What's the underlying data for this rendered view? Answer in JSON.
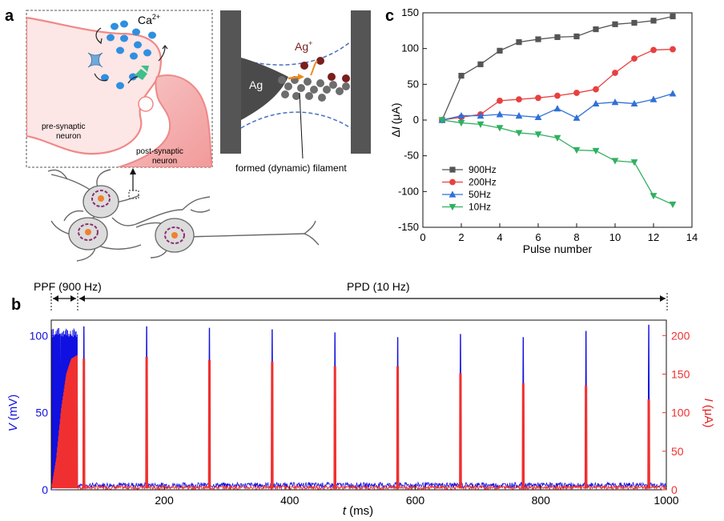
{
  "figure": {
    "panel_a_label": "a",
    "panel_b_label": "b",
    "panel_c_label": "c",
    "synapse": {
      "ion": "Ca",
      "ion_charge": "2+",
      "pre_label_1": "pre-synaptic",
      "pre_label_2": "neuron",
      "post_label_1": "post-synaptic",
      "post_label_2": "neuron"
    },
    "filament": {
      "electrode": "Ag",
      "ion": "Ag",
      "ion_charge": "+",
      "caption": "formed (dynamic) filament"
    },
    "pulse_bar": {
      "ppf_label": "PPF (900 Hz)",
      "ppd_label": "PPD (10 Hz)"
    },
    "colors": {
      "voltage": "#1010e0",
      "current": "#f03030",
      "s900": "#555555",
      "s200": "#e84040",
      "s50": "#3070d8",
      "s10": "#30b060"
    }
  },
  "chart_data": [
    {
      "type": "line",
      "panel": "c",
      "xlabel": "Pulse number",
      "ylabel_symbol": "Δ",
      "ylabel_var": "I",
      "ylabel_unit": "(μA)",
      "xlim": [
        0,
        14
      ],
      "ylim": [
        -150,
        150
      ],
      "xticks": [
        0,
        2,
        4,
        6,
        8,
        10,
        12,
        14
      ],
      "yticks": [
        -150,
        -100,
        -50,
        0,
        50,
        100,
        150
      ],
      "legend_position": "lower-left",
      "x": [
        1,
        2,
        3,
        4,
        5,
        6,
        7,
        8,
        9,
        10,
        11,
        12,
        13
      ],
      "series": [
        {
          "name": "900Hz",
          "marker": "square",
          "color": "#555555",
          "values": [
            0,
            62,
            78,
            97,
            109,
            113,
            116,
            117,
            127,
            134,
            136,
            139,
            145
          ]
        },
        {
          "name": "200Hz",
          "marker": "circle",
          "color": "#e84040",
          "values": [
            0,
            4,
            8,
            27,
            29,
            31,
            34,
            38,
            43,
            66,
            86,
            98,
            99
          ]
        },
        {
          "name": "50Hz",
          "marker": "triangle-up",
          "color": "#3070d8",
          "values": [
            0,
            6,
            6,
            8,
            6,
            4,
            16,
            3,
            23,
            25,
            23,
            29,
            37
          ]
        },
        {
          "name": "10Hz",
          "marker": "triangle-down",
          "color": "#30b060",
          "values": [
            0,
            -4,
            -6,
            -11,
            -18,
            -20,
            -25,
            -42,
            -43,
            -57,
            -59,
            -106,
            -118
          ]
        }
      ]
    },
    {
      "type": "line",
      "panel": "b",
      "xlabel_var": "t",
      "xlabel_unit": "(ms)",
      "ylabel_left_var": "V",
      "ylabel_left_unit": "(mV)",
      "ylabel_right_var": "I",
      "ylabel_right_unit": "(μA)",
      "xlim": [
        20,
        1000
      ],
      "ylim_left": [
        0,
        110
      ],
      "ylim_right": [
        0,
        220
      ],
      "xticks": [
        200,
        400,
        600,
        800,
        1000
      ],
      "yticks_left": [
        0,
        50,
        100
      ],
      "yticks_right": [
        0,
        50,
        100,
        150,
        200
      ],
      "ppf_window_ms": [
        20,
        62
      ],
      "voltage_spike_times_ms": [
        72,
        172,
        272,
        372,
        472,
        572,
        672,
        772,
        872,
        972
      ],
      "voltage_spike_peaks_mV": [
        106,
        106,
        105,
        104,
        102,
        99,
        101,
        99,
        103,
        107
      ],
      "current_spike_peaks_uA": [
        170,
        172,
        168,
        166,
        160,
        160,
        151,
        138,
        135,
        117
      ],
      "ppf_current_envelope_uA": [
        [
          20,
          0
        ],
        [
          28,
          40
        ],
        [
          36,
          105
        ],
        [
          44,
          150
        ],
        [
          52,
          170
        ],
        [
          62,
          175
        ]
      ]
    }
  ]
}
